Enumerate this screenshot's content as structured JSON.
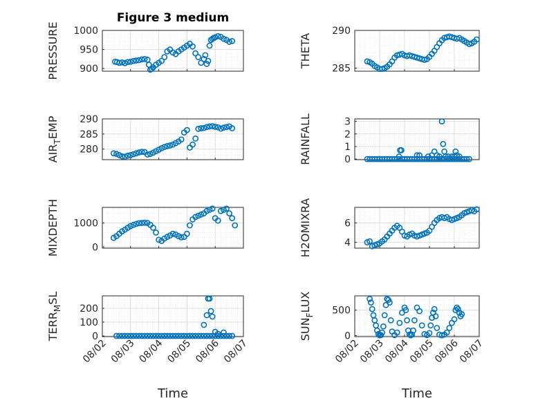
{
  "chart_data": [
    {
      "type": "scatter",
      "title": "Figure 3 medium",
      "ylabel": "PRESSURE",
      "xlabel": "",
      "ylim": [
        893,
        1000
      ],
      "yticks": [
        900,
        950,
        1000
      ],
      "xlim": [
        0,
        5
      ],
      "xtick_labels": [
        "08/02",
        "08/03",
        "08/04",
        "08/05",
        "08/06",
        "08/07"
      ],
      "show_xticklabels": false,
      "grid": true,
      "x": [
        0.45,
        0.52,
        0.6,
        0.7,
        0.8,
        0.9,
        1.0,
        1.1,
        1.2,
        1.3,
        1.4,
        1.5,
        1.6,
        1.65,
        1.7,
        1.75,
        1.8,
        1.9,
        2.0,
        2.1,
        2.2,
        2.3,
        2.4,
        2.5,
        2.6,
        2.7,
        2.8,
        2.9,
        3.0,
        3.1,
        3.2,
        3.3,
        3.4,
        3.5,
        3.6,
        3.65,
        3.7,
        3.75,
        3.8,
        3.85,
        3.9,
        3.95,
        4.0,
        4.1,
        4.2,
        4.3,
        4.4,
        4.5,
        4.6
      ],
      "y": [
        918,
        917,
        915,
        916,
        914,
        917,
        918,
        920,
        921,
        922,
        924,
        925,
        923,
        910,
        897,
        899,
        903,
        910,
        915,
        920,
        930,
        945,
        950,
        942,
        938,
        945,
        950,
        955,
        960,
        965,
        958,
        940,
        930,
        915,
        925,
        935,
        912,
        920,
        960,
        975,
        978,
        980,
        982,
        985,
        983,
        978,
        975,
        970,
        972
      ]
    },
    {
      "type": "scatter",
      "ylabel": "THETA",
      "ylim": [
        284.6,
        290
      ],
      "yticks": [
        285,
        290
      ],
      "xlim": [
        0,
        5
      ],
      "xtick_labels": [
        "08/02",
        "08/03",
        "08/04",
        "08/05",
        "08/06",
        "08/07"
      ],
      "show_xticklabels": false,
      "grid": true,
      "x": [
        0.5,
        0.6,
        0.7,
        0.8,
        0.9,
        1.0,
        1.1,
        1.2,
        1.3,
        1.4,
        1.5,
        1.6,
        1.7,
        1.8,
        1.9,
        2.0,
        2.1,
        2.2,
        2.3,
        2.4,
        2.5,
        2.6,
        2.7,
        2.8,
        2.9,
        3.0,
        3.1,
        3.2,
        3.3,
        3.4,
        3.5,
        3.6,
        3.7,
        3.8,
        3.9,
        4.0,
        4.1,
        4.2,
        4.3,
        4.4,
        4.5,
        4.6,
        4.7,
        4.8,
        4.9
      ],
      "y": [
        285.9,
        285.8,
        285.6,
        285.3,
        285.1,
        284.9,
        284.9,
        285.0,
        285.2,
        285.5,
        285.9,
        286.4,
        286.7,
        286.8,
        286.9,
        286.7,
        286.6,
        286.7,
        286.6,
        286.5,
        286.4,
        286.3,
        286.2,
        286.1,
        286.2,
        286.5,
        286.9,
        287.3,
        287.8,
        288.3,
        288.7,
        289.0,
        289.1,
        289.2,
        289.1,
        289.0,
        288.9,
        289.0,
        288.8,
        288.6,
        288.4,
        288.2,
        288.3,
        288.5,
        288.8
      ]
    },
    {
      "type": "scatter",
      "ylabel": "AIR_TEMP",
      "ylim": [
        276.5,
        290
      ],
      "yticks": [
        280,
        285,
        290
      ],
      "xlim": [
        0,
        5
      ],
      "xtick_labels": [
        "08/02",
        "08/03",
        "08/04",
        "08/05",
        "08/06",
        "08/07"
      ],
      "show_xticklabels": false,
      "grid": true,
      "x": [
        0.4,
        0.5,
        0.6,
        0.7,
        0.8,
        0.9,
        1.0,
        1.1,
        1.2,
        1.3,
        1.4,
        1.5,
        1.6,
        1.7,
        1.8,
        1.9,
        2.0,
        2.1,
        2.2,
        2.3,
        2.4,
        2.5,
        2.6,
        2.7,
        2.8,
        2.9,
        3.0,
        3.1,
        3.2,
        3.3,
        3.4,
        3.5,
        3.6,
        3.7,
        3.8,
        3.9,
        4.0,
        4.1,
        4.2,
        4.3,
        4.4,
        4.5,
        4.6
      ],
      "y": [
        278.6,
        278.4,
        278.0,
        277.6,
        277.5,
        277.8,
        278.0,
        278.3,
        278.6,
        278.9,
        279.1,
        279.0,
        278.2,
        278.4,
        278.8,
        279.3,
        279.8,
        280.3,
        280.7,
        281.0,
        281.2,
        281.5,
        282.0,
        282.5,
        283.2,
        285.5,
        286.3,
        280.5,
        281.5,
        283.5,
        286.7,
        286.9,
        287.0,
        287.3,
        287.5,
        287.6,
        287.4,
        287.2,
        286.8,
        287.1,
        287.3,
        287.5,
        286.9
      ]
    },
    {
      "type": "scatter",
      "ylabel": "RAINFALL",
      "ylim": [
        -0.05,
        3.2
      ],
      "yticks": [
        0,
        1,
        2,
        3
      ],
      "xlim": [
        0,
        5
      ],
      "xtick_labels": [
        "08/02",
        "08/03",
        "08/04",
        "08/05",
        "08/06",
        "08/07"
      ],
      "show_xticklabels": false,
      "grid": true,
      "x": [
        0.5,
        0.6,
        0.7,
        0.8,
        0.9,
        1.0,
        1.1,
        1.2,
        1.3,
        1.4,
        1.5,
        1.6,
        1.7,
        1.8,
        1.9,
        2.0,
        2.1,
        2.2,
        2.3,
        2.4,
        2.5,
        2.6,
        2.7,
        2.8,
        2.9,
        3.0,
        3.1,
        3.2,
        3.3,
        3.4,
        3.5,
        3.6,
        3.7,
        3.8,
        3.9,
        4.0,
        4.1,
        4.2,
        4.3,
        4.4,
        4.5,
        4.6,
        1.82,
        1.87,
        1.78,
        2.5,
        2.6,
        2.95,
        3.1,
        3.2,
        3.3,
        3.4,
        3.5,
        3.55,
        3.6,
        3.65,
        3.75,
        3.9,
        4.0,
        4.05,
        4.1,
        4.2
      ],
      "y": [
        0,
        0,
        0,
        0,
        0,
        0,
        0,
        0,
        0,
        0,
        0,
        0,
        0,
        0,
        0,
        0,
        0,
        0,
        0,
        0,
        0,
        0,
        0,
        0,
        0,
        0,
        0,
        0,
        0,
        0,
        0,
        0,
        0,
        0,
        0,
        0,
        0,
        0,
        0,
        0,
        0,
        0,
        0.7,
        0.7,
        0.2,
        0.3,
        0.3,
        0.2,
        0.3,
        0.6,
        0.3,
        0.2,
        3.0,
        1.2,
        0.6,
        0.2,
        0.2,
        0.2,
        0.2,
        0.6,
        0.3,
        0.2
      ]
    },
    {
      "type": "scatter",
      "ylabel": "MIXDEPTH",
      "ylim": [
        -50,
        1650
      ],
      "yticks": [
        0,
        1000
      ],
      "xlim": [
        0,
        5
      ],
      "xtick_labels": [
        "08/02",
        "08/03",
        "08/04",
        "08/05",
        "08/06",
        "08/07"
      ],
      "show_xticklabels": false,
      "grid": true,
      "x": [
        0.4,
        0.5,
        0.6,
        0.7,
        0.8,
        0.9,
        1.0,
        1.1,
        1.2,
        1.3,
        1.4,
        1.5,
        1.6,
        1.7,
        1.8,
        1.9,
        2.0,
        2.1,
        2.2,
        2.3,
        2.4,
        2.5,
        2.6,
        2.7,
        2.8,
        2.9,
        3.0,
        3.1,
        3.2,
        3.3,
        3.4,
        3.5,
        3.6,
        3.7,
        3.8,
        3.9,
        4.0,
        4.1,
        4.2,
        4.3,
        4.4,
        4.5,
        4.6,
        4.7
      ],
      "y": [
        380,
        450,
        550,
        650,
        720,
        800,
        870,
        920,
        960,
        990,
        1000,
        1010,
        1000,
        920,
        800,
        600,
        300,
        250,
        350,
        420,
        480,
        550,
        520,
        450,
        400,
        420,
        550,
        900,
        1150,
        1250,
        1300,
        1350,
        1400,
        1500,
        1550,
        1600,
        1200,
        1100,
        1500,
        1550,
        1600,
        1400,
        1200,
        900
      ]
    },
    {
      "type": "scatter",
      "ylabel": "H2OMIXRA",
      "ylim": [
        3.4,
        7.6
      ],
      "yticks": [
        4,
        6
      ],
      "xlim": [
        0,
        5
      ],
      "xtick_labels": [
        "08/02",
        "08/03",
        "08/04",
        "08/05",
        "08/06",
        "08/07"
      ],
      "show_xticklabels": false,
      "grid": true,
      "x": [
        0.5,
        0.6,
        0.7,
        0.8,
        0.9,
        1.0,
        1.1,
        1.2,
        1.3,
        1.4,
        1.5,
        1.6,
        1.7,
        1.8,
        1.9,
        2.0,
        2.1,
        2.2,
        2.3,
        2.4,
        2.5,
        2.6,
        2.7,
        2.8,
        2.9,
        3.0,
        3.1,
        3.2,
        3.3,
        3.4,
        3.5,
        3.6,
        3.7,
        3.8,
        3.9,
        4.0,
        4.1,
        4.2,
        4.3,
        4.4,
        4.5,
        4.6,
        4.7,
        4.8,
        4.9
      ],
      "y": [
        4.0,
        4.1,
        3.6,
        3.7,
        3.8,
        3.9,
        4.1,
        4.3,
        4.6,
        4.9,
        5.2,
        5.5,
        5.7,
        5.5,
        5.1,
        4.7,
        4.6,
        4.8,
        4.9,
        4.7,
        4.6,
        4.7,
        4.8,
        4.9,
        5.0,
        5.2,
        5.6,
        6.0,
        6.3,
        6.5,
        6.6,
        6.5,
        6.6,
        6.4,
        6.3,
        6.4,
        6.5,
        6.6,
        6.8,
        7.0,
        7.1,
        7.2,
        7.3,
        7.2,
        7.4
      ]
    },
    {
      "type": "scatter",
      "ylabel": "TERR_MSL",
      "ylim": [
        -5,
        290
      ],
      "yticks": [
        0,
        100,
        200
      ],
      "xlim": [
        0,
        5
      ],
      "xtick_labels": [
        "08/02",
        "08/03",
        "08/04",
        "08/05",
        "08/06",
        "08/07"
      ],
      "show_xticklabels": true,
      "xlabel": "Time",
      "grid": true,
      "x": [
        0.5,
        0.6,
        0.7,
        0.8,
        0.9,
        1.0,
        1.1,
        1.2,
        1.3,
        1.4,
        1.5,
        1.6,
        1.7,
        1.8,
        1.9,
        2.0,
        2.1,
        2.2,
        2.3,
        2.4,
        2.5,
        2.6,
        2.7,
        2.8,
        2.9,
        3.0,
        3.1,
        3.2,
        3.3,
        3.4,
        3.5,
        3.6,
        3.7,
        3.8,
        3.9,
        4.0,
        4.1,
        4.2,
        4.3,
        4.4,
        4.5,
        4.6,
        3.6,
        3.7,
        3.75,
        3.8,
        3.85,
        3.9,
        4.0,
        4.1,
        4.3
      ],
      "y": [
        0,
        0,
        0,
        0,
        0,
        0,
        0,
        0,
        0,
        0,
        0,
        0,
        0,
        0,
        0,
        0,
        0,
        0,
        0,
        0,
        0,
        0,
        0,
        0,
        0,
        0,
        0,
        0,
        0,
        0,
        0,
        0,
        0,
        0,
        0,
        0,
        0,
        0,
        0,
        0,
        0,
        0,
        80,
        150,
        270,
        270,
        180,
        140,
        30,
        15,
        25
      ]
    },
    {
      "type": "scatter",
      "ylabel": "SUN_FLUX",
      "ylim": [
        -20,
        780
      ],
      "yticks": [
        0,
        500
      ],
      "xlim": [
        0,
        5
      ],
      "xtick_labels": [
        "08/02",
        "08/03",
        "08/04",
        "08/05",
        "08/06",
        "08/07"
      ],
      "show_xticklabels": true,
      "xlabel": "Time",
      "grid": true,
      "x": [
        0.6,
        0.65,
        0.7,
        0.75,
        0.8,
        0.85,
        0.9,
        0.95,
        1.0,
        1.05,
        1.1,
        1.15,
        1.2,
        1.25,
        1.3,
        1.35,
        1.4,
        1.45,
        1.5,
        1.6,
        1.7,
        1.8,
        1.9,
        2.0,
        2.05,
        2.1,
        2.15,
        2.2,
        2.25,
        2.3,
        2.35,
        2.4,
        2.5,
        2.6,
        2.7,
        2.8,
        2.9,
        3.0,
        3.05,
        3.1,
        3.15,
        3.2,
        3.25,
        3.3,
        3.4,
        3.5,
        3.6,
        3.7,
        3.8,
        3.9,
        4.0,
        4.05,
        4.1,
        4.15,
        4.2,
        4.25,
        4.3
      ],
      "y": [
        720,
        650,
        520,
        400,
        300,
        200,
        100,
        30,
        5,
        10,
        60,
        180,
        400,
        600,
        720,
        700,
        650,
        300,
        80,
        10,
        60,
        250,
        450,
        550,
        500,
        300,
        100,
        20,
        5,
        20,
        100,
        300,
        550,
        480,
        200,
        30,
        10,
        50,
        200,
        350,
        450,
        520,
        380,
        150,
        20,
        5,
        20,
        60,
        150,
        250,
        320,
        500,
        550,
        520,
        450,
        380,
        420
      ]
    }
  ]
}
